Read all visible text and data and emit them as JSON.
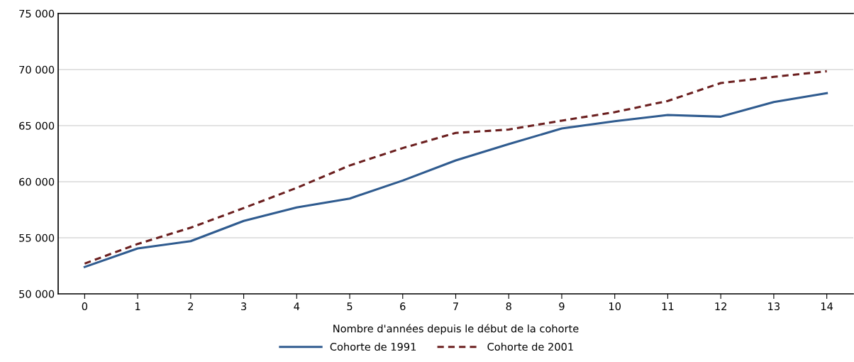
{
  "chart_data": {
    "type": "line",
    "xlabel": "Nombre d'années depuis le début de la cohorte",
    "categories": [
      "0",
      "1",
      "2",
      "3",
      "4",
      "5",
      "6",
      "7",
      "8",
      "9",
      "10",
      "11",
      "12",
      "13",
      "14"
    ],
    "series": [
      {
        "name": "Cohorte de 1991",
        "color": "#2f5b8f",
        "line_style": "solid",
        "values": [
          52400,
          54050,
          54700,
          56500,
          57700,
          58500,
          60100,
          61900,
          63350,
          64750,
          65400,
          65950,
          65800,
          67100,
          67900
        ]
      },
      {
        "name": "Cohorte de 2001",
        "color": "#6b1f1f",
        "line_style": "dashed",
        "values": [
          52700,
          54450,
          55900,
          57650,
          59450,
          61450,
          63000,
          64350,
          64650,
          65450,
          66200,
          67200,
          68800,
          69350,
          69850
        ]
      }
    ],
    "ylim": [
      50000,
      75000
    ],
    "yticks": [
      {
        "value": 50000,
        "label": "50 000"
      },
      {
        "value": 55000,
        "label": "55 000"
      },
      {
        "value": 60000,
        "label": "60 000"
      },
      {
        "value": 65000,
        "label": "65 000"
      },
      {
        "value": 70000,
        "label": "70 000"
      },
      {
        "value": 75000,
        "label": "75 000"
      }
    ],
    "grid": "y",
    "legend": "bottom",
    "marker": "none"
  }
}
